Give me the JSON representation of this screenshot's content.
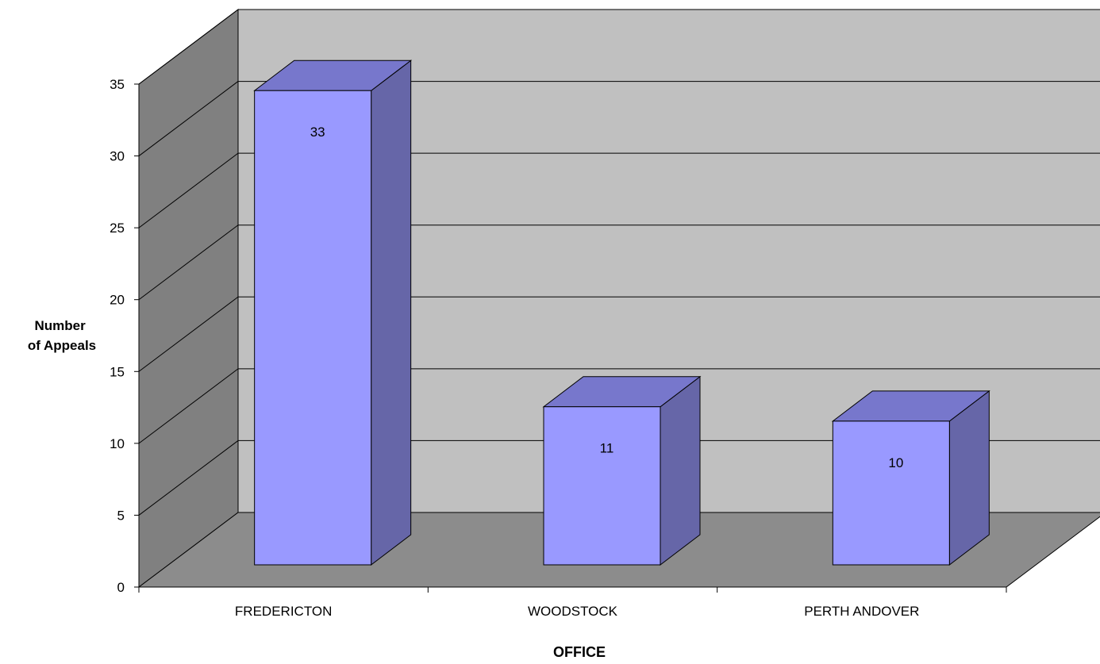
{
  "chart_data": {
    "type": "bar",
    "style": "3d-column",
    "categories": [
      "FREDERICTON",
      "WOODSTOCK",
      "PERTH ANDOVER"
    ],
    "values": [
      33,
      11,
      10
    ],
    "data_labels": [
      "33",
      "11",
      "10"
    ],
    "title": "",
    "xlabel": "OFFICE",
    "ylabel_lines": [
      "Number",
      "of Appeals"
    ],
    "ylim": [
      0,
      35
    ],
    "yticks": [
      0,
      5,
      10,
      15,
      20,
      25,
      30,
      35
    ],
    "grid": true,
    "legend": "none",
    "colors": {
      "bar_front": "#9999ff",
      "bar_top": "#7777cc",
      "bar_side": "#6666a8",
      "back_wall": "#c0c0c0",
      "side_wall": "#808080",
      "floor": "#8c8c8c"
    }
  }
}
